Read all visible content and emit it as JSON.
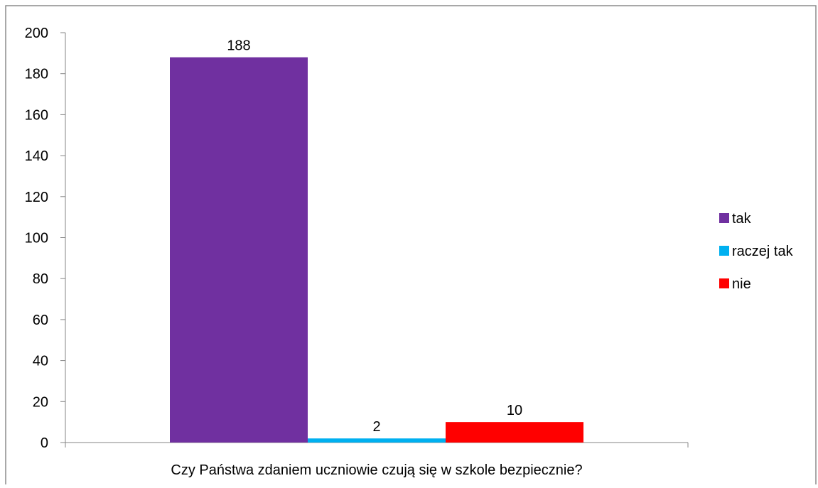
{
  "chart_data": {
    "type": "bar",
    "title": "",
    "xlabel": "Czy Państwa zdaniem uczniowie czują się w szkole bezpiecznie?",
    "ylabel": "",
    "ylim": [
      0,
      200
    ],
    "yticks": [
      0,
      20,
      40,
      60,
      80,
      100,
      120,
      140,
      160,
      180,
      200
    ],
    "categories": [
      "Czy Państwa zdaniem uczniowie czują się w szkole bezpiecznie?"
    ],
    "series": [
      {
        "name": "tak",
        "values": [
          188
        ],
        "color": "#7030a0"
      },
      {
        "name": "raczej tak",
        "values": [
          2
        ],
        "color": "#00b0f0"
      },
      {
        "name": "nie",
        "values": [
          10
        ],
        "color": "#ff0000"
      }
    ],
    "data_labels": [
      "188",
      "2",
      "10"
    ],
    "legend_position": "right",
    "grid": false
  }
}
